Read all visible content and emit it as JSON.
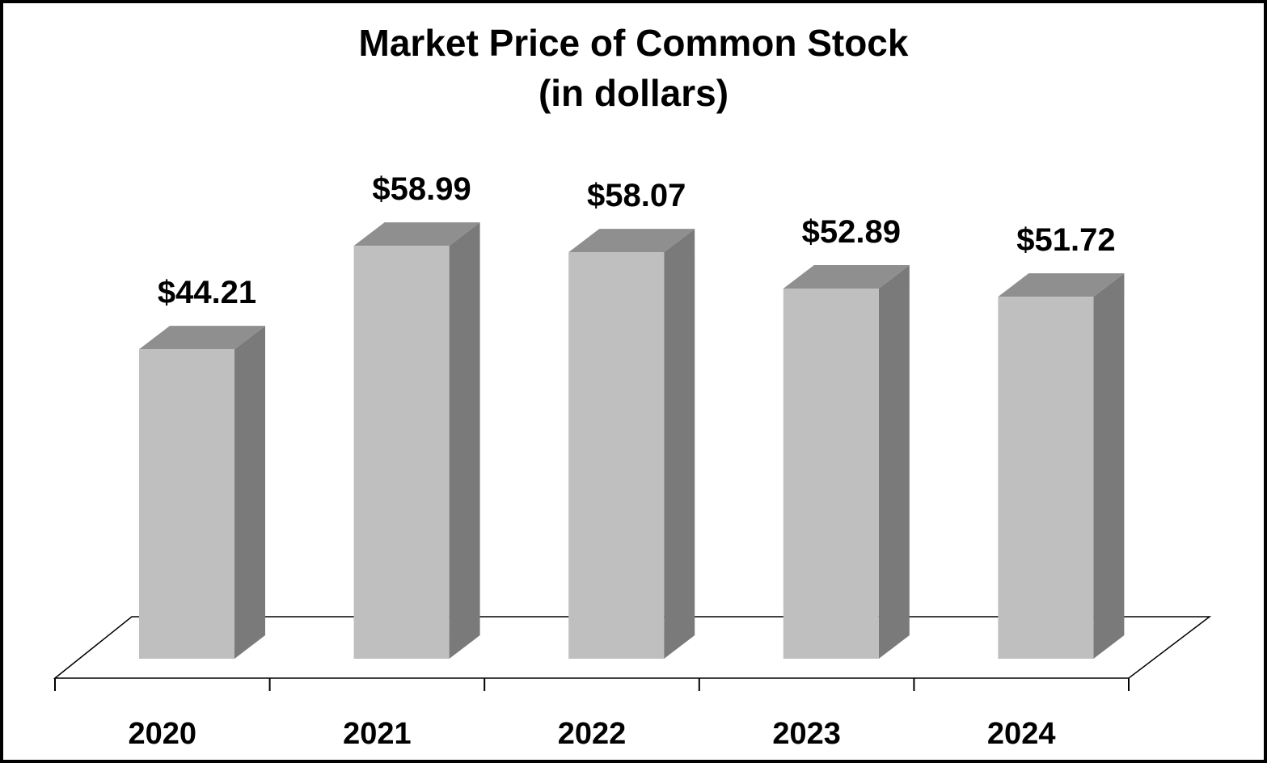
{
  "chart_data": {
    "type": "bar",
    "style": "3d-column",
    "title": "Market Price of Common Stock",
    "subtitle": "(in dollars)",
    "categories": [
      "2020",
      "2021",
      "2022",
      "2023",
      "2024"
    ],
    "values": [
      44.21,
      58.99,
      58.07,
      52.89,
      51.72
    ],
    "value_labels": [
      "$44.21",
      "$58.99",
      "$58.07",
      "$52.89",
      "$51.72"
    ],
    "xlabel": "",
    "ylabel": "",
    "y_axis_visible": false,
    "grid": false,
    "legend": "none",
    "colors": {
      "bar_front": "#bfbfbf",
      "bar_top": "#8f8f8f",
      "bar_side": "#7a7a7a",
      "floor_line": "#000000",
      "border": "#000000",
      "text": "#000000"
    }
  }
}
